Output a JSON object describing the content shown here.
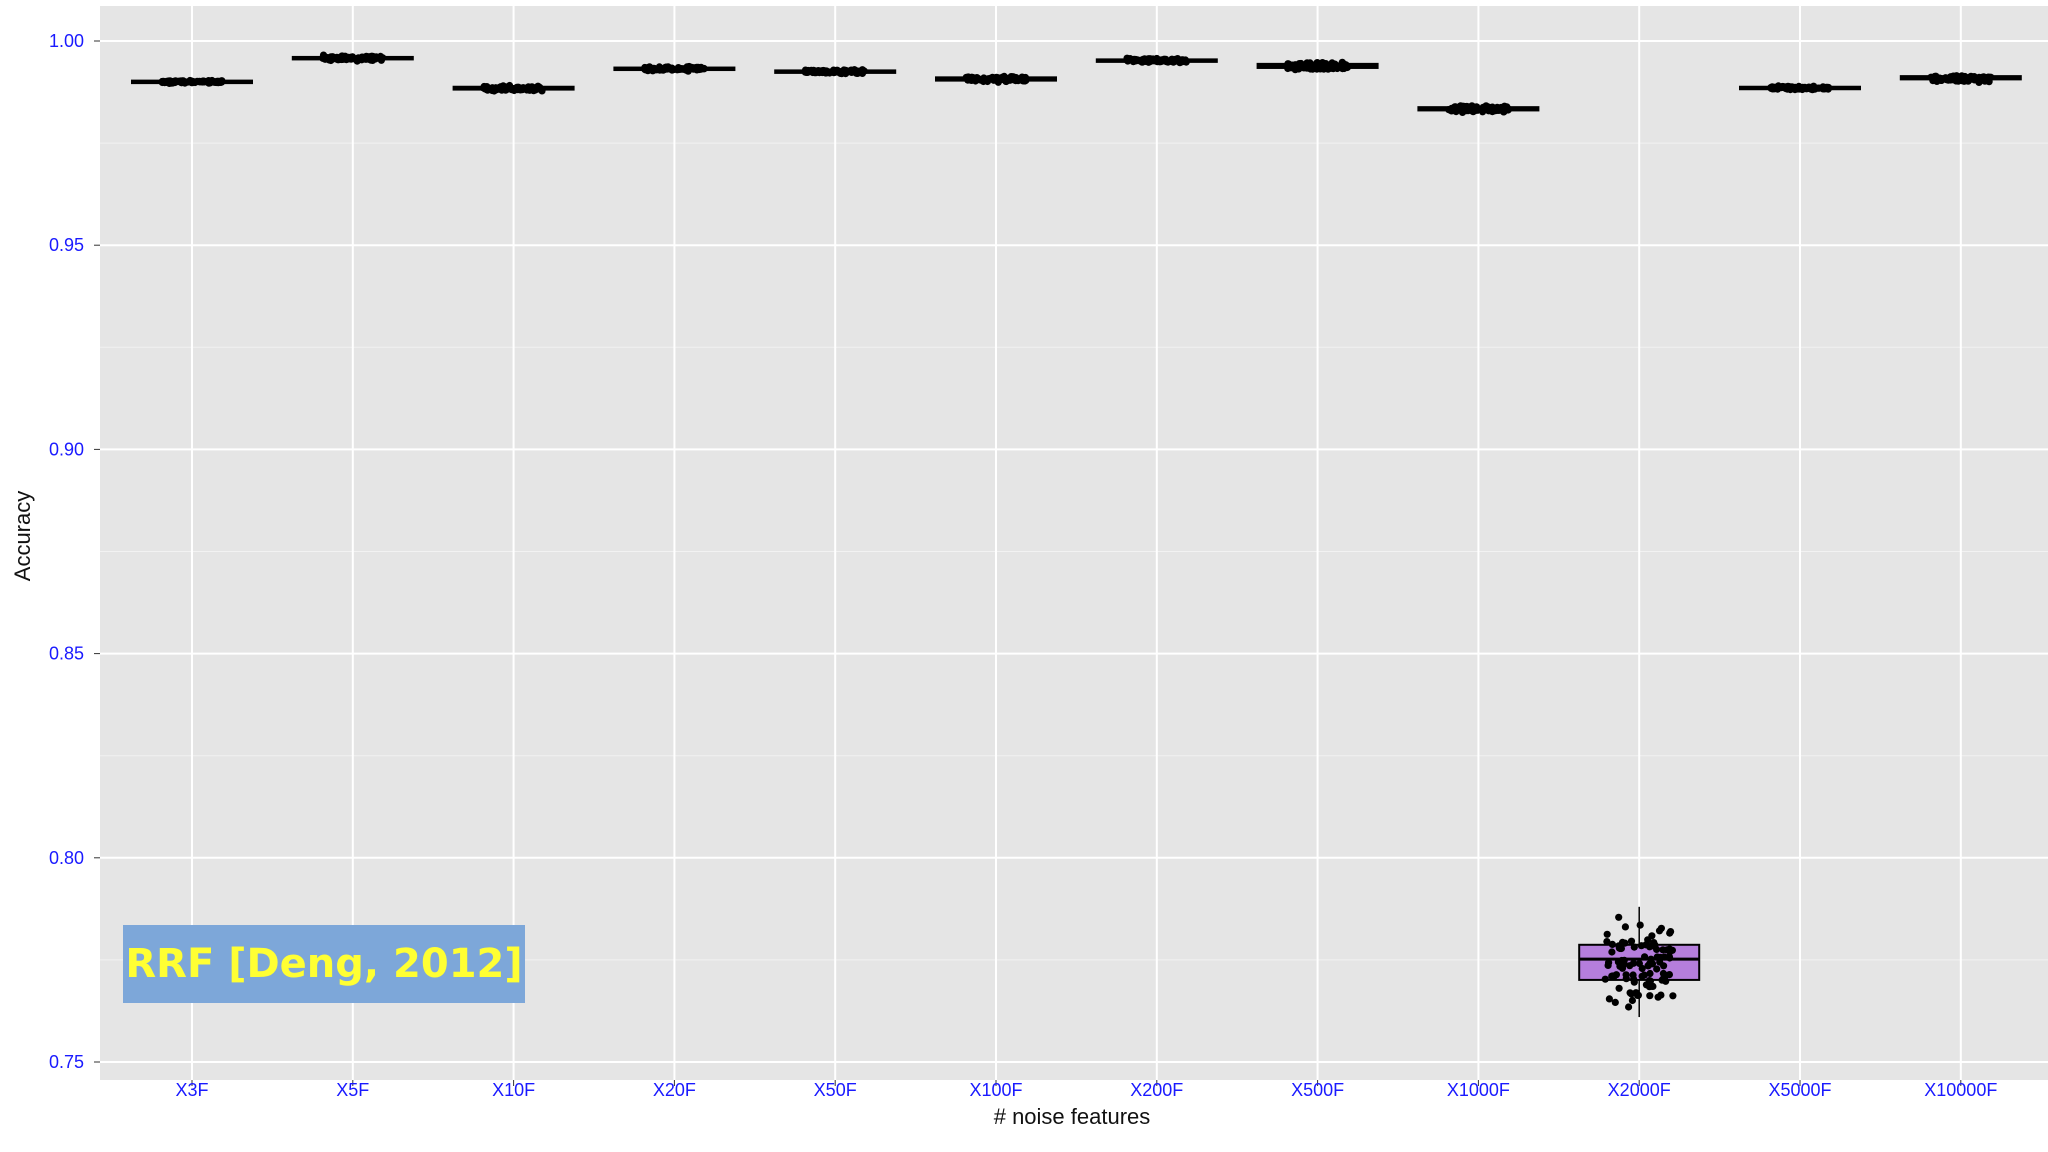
{
  "annotation": "RRF [Deng, 2012]",
  "colors": {
    "panel": "#e5e5e5",
    "grid": "#ffffff",
    "tick_text": "#1a1aff",
    "box_fill": "#b57edc",
    "points": "#000000",
    "annotation_bg": "#7da7d9",
    "annotation_text": "#ffff33"
  },
  "chart_data": {
    "type": "box",
    "xlabel": "# noise features",
    "ylabel": "Accuracy",
    "ylim": [
      0.75,
      1.0
    ],
    "yticks": [
      0.75,
      0.8,
      0.85,
      0.9,
      0.95,
      1.0
    ],
    "ytick_labels": [
      "0.75",
      "0.80",
      "0.85",
      "0.90",
      "0.95",
      "1.00"
    ],
    "grid": true,
    "categories": [
      "X3F",
      "X5F",
      "X10F",
      "X20F",
      "X50F",
      "X100F",
      "X200F",
      "X500F",
      "X1000F",
      "X2000F",
      "X5000F",
      "X10000F"
    ],
    "boxes": [
      {
        "category": "X3F",
        "q1": 0.9897,
        "median": 0.99,
        "q3": 0.9903,
        "min": 0.9895,
        "max": 0.9905
      },
      {
        "category": "X5F",
        "q1": 0.9955,
        "median": 0.9958,
        "q3": 0.9961,
        "min": 0.995,
        "max": 0.9966
      },
      {
        "category": "X10F",
        "q1": 0.9881,
        "median": 0.9885,
        "q3": 0.9888,
        "min": 0.9876,
        "max": 0.9892
      },
      {
        "category": "X20F",
        "q1": 0.9929,
        "median": 0.9932,
        "q3": 0.9935,
        "min": 0.9925,
        "max": 0.9939
      },
      {
        "category": "X50F",
        "q1": 0.9922,
        "median": 0.9925,
        "q3": 0.9928,
        "min": 0.9918,
        "max": 0.9932
      },
      {
        "category": "X100F",
        "q1": 0.9903,
        "median": 0.9907,
        "q3": 0.9911,
        "min": 0.9897,
        "max": 0.9916
      },
      {
        "category": "X200F",
        "q1": 0.9949,
        "median": 0.9952,
        "q3": 0.9955,
        "min": 0.9944,
        "max": 0.9959
      },
      {
        "category": "X500F",
        "q1": 0.9934,
        "median": 0.9939,
        "q3": 0.9944,
        "min": 0.9925,
        "max": 0.9952
      },
      {
        "category": "X1000F",
        "q1": 0.983,
        "median": 0.9834,
        "q3": 0.9838,
        "min": 0.9822,
        "max": 0.9845
      },
      {
        "category": "X2000F",
        "q1": 0.7701,
        "median": 0.7752,
        "q3": 0.7787,
        "min": 0.761,
        "max": 0.788
      },
      {
        "category": "X5000F",
        "q1": 0.9882,
        "median": 0.9885,
        "q3": 0.9888,
        "min": 0.9879,
        "max": 0.9891
      },
      {
        "category": "X10000F",
        "q1": 0.9906,
        "median": 0.991,
        "q3": 0.9914,
        "min": 0.9895,
        "max": 0.992
      }
    ]
  }
}
